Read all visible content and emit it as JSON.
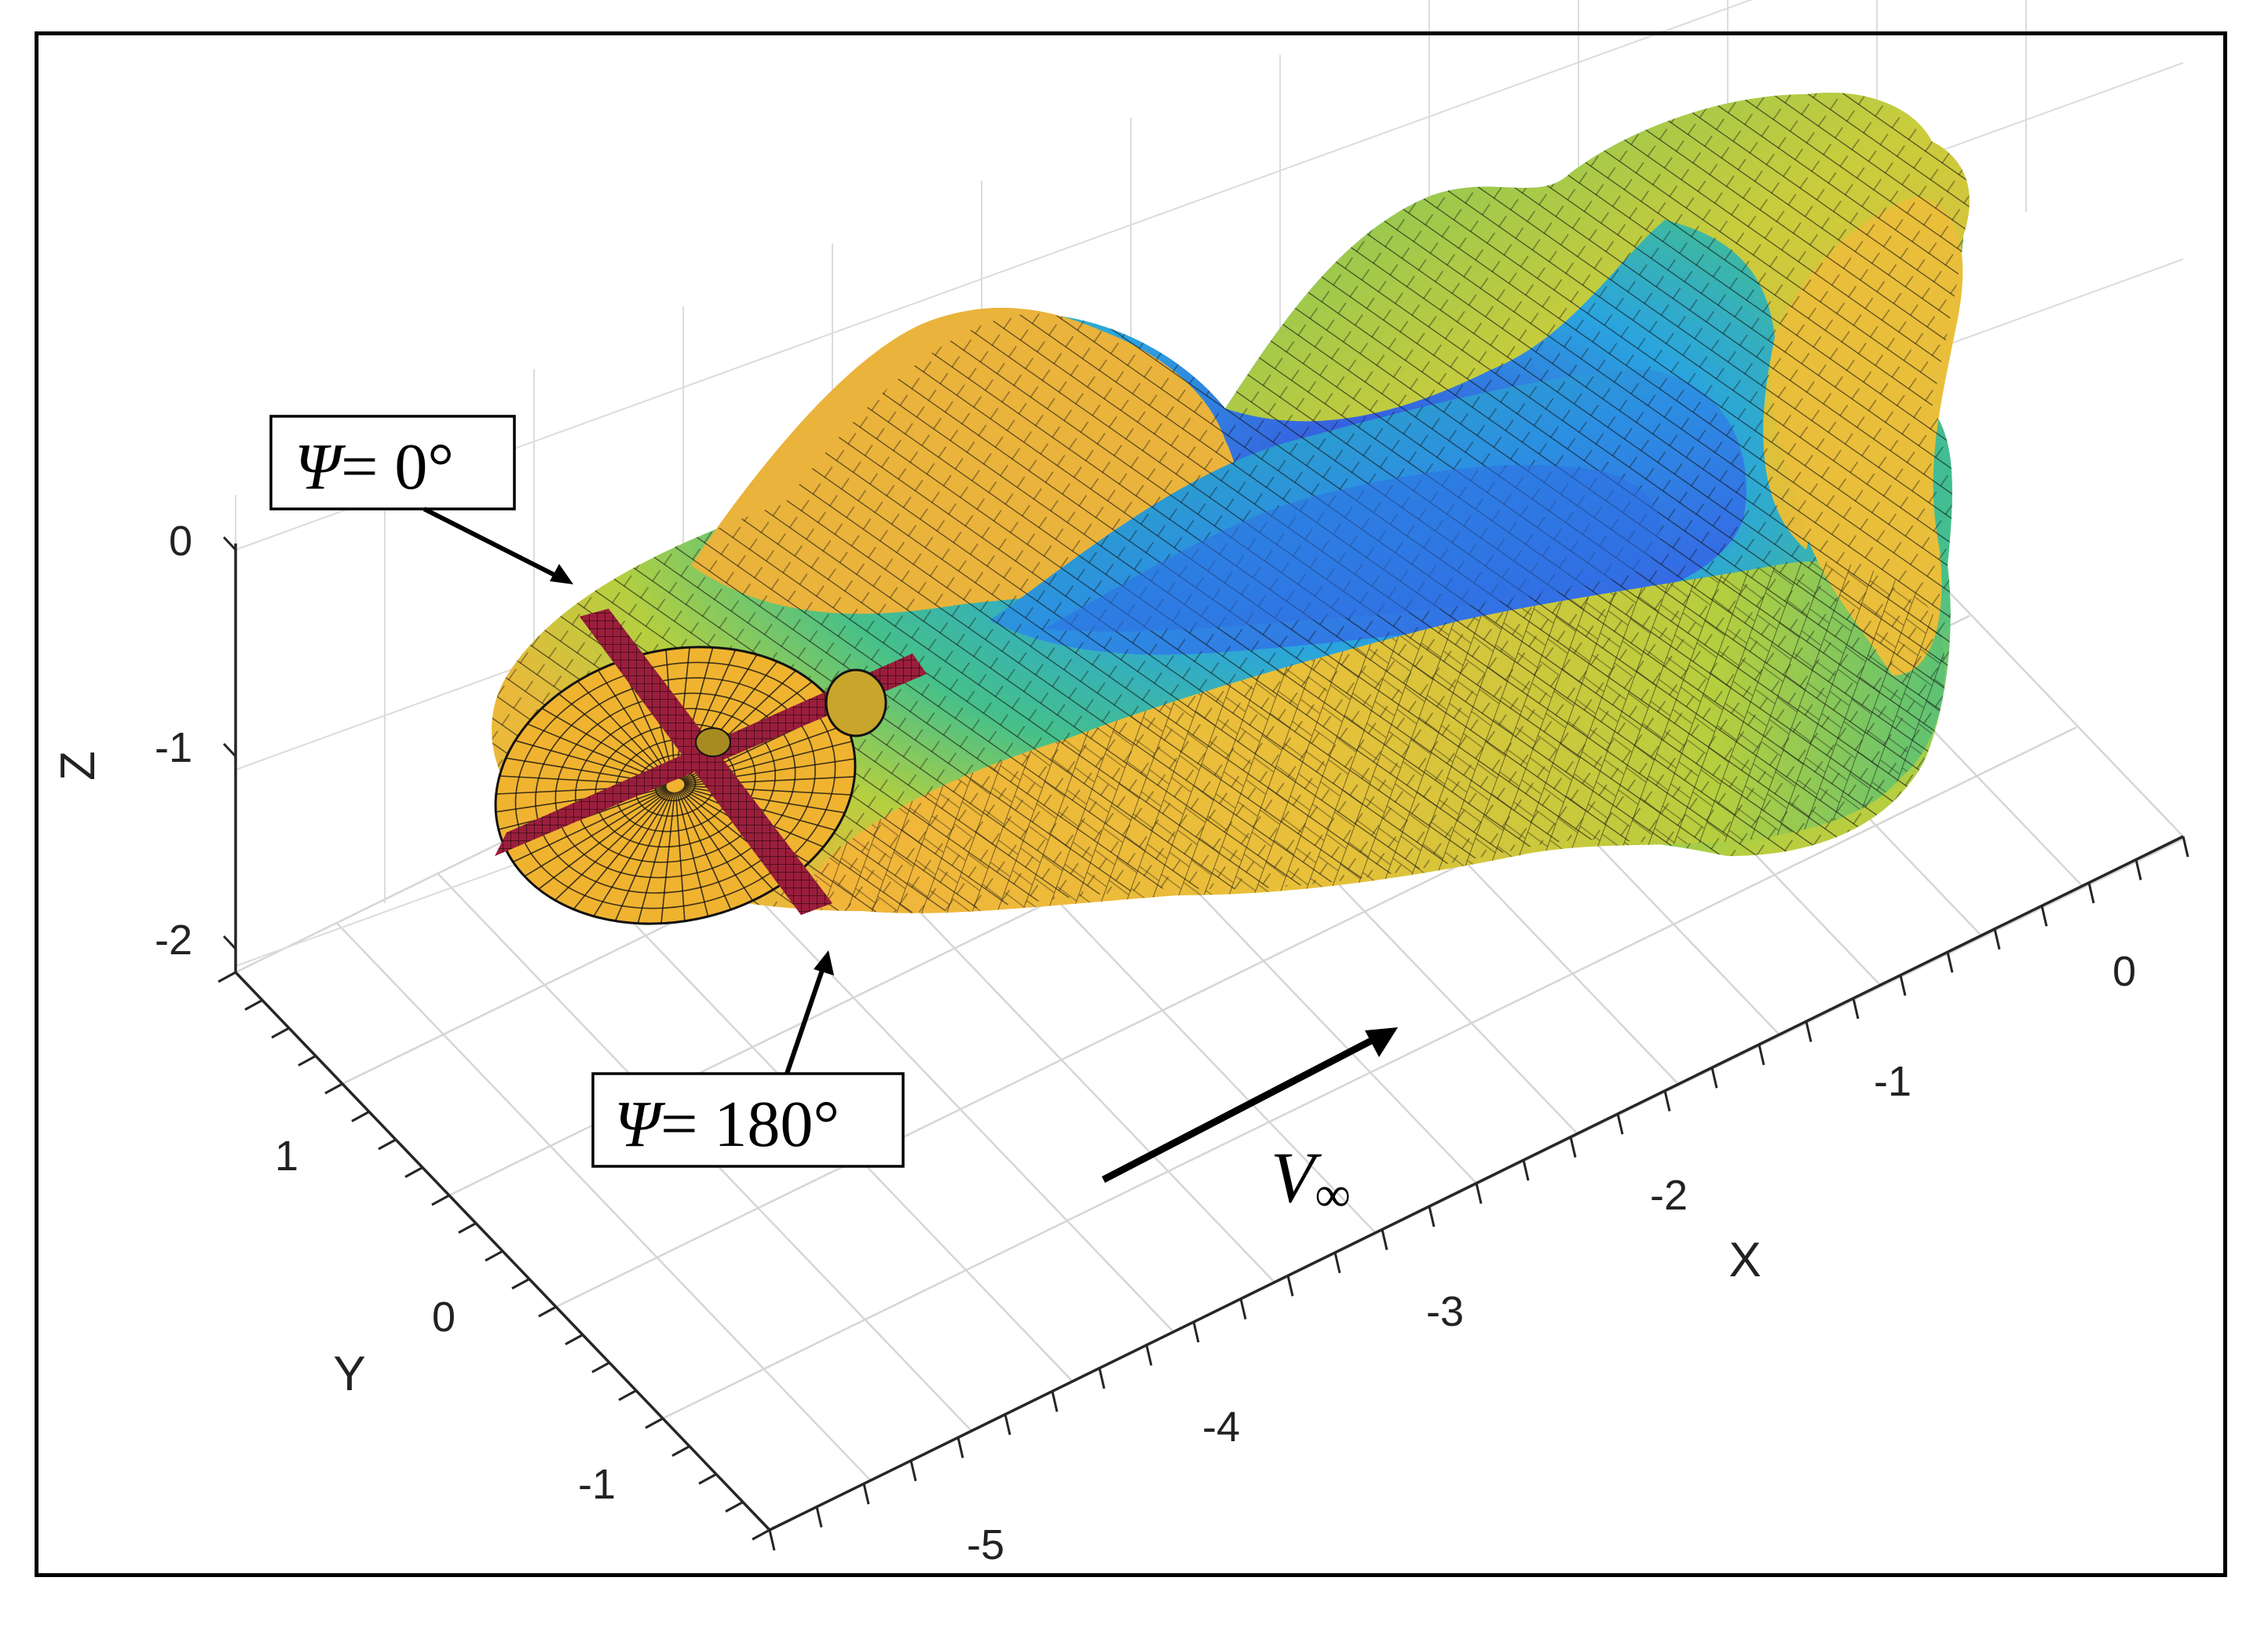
{
  "chart_data": {
    "type": "surface",
    "render": "3d-isosurface",
    "axes": {
      "x": {
        "label": "X",
        "ticks": [
          "0",
          "-1",
          "-2",
          "-3",
          "-4",
          "-5"
        ]
      },
      "y": {
        "label": "Y",
        "ticks": [
          "1",
          "0",
          "-1"
        ]
      },
      "z": {
        "label": "Z",
        "ticks": [
          "0",
          "-1",
          "-2"
        ]
      }
    },
    "grid": true,
    "annotations": {
      "psi0": {
        "symbol": "Ψ",
        "text": "= 0°"
      },
      "psi180": {
        "symbol": "Ψ",
        "text": "= 180°"
      },
      "freestream": {
        "symbol": "V",
        "subscript": "∞"
      }
    },
    "colormap": [
      "#f2b43a",
      "#e9c23a",
      "#b8cf3e",
      "#5fc46a",
      "#2fb6a8",
      "#2a8fe0",
      "#3a4ee0"
    ],
    "rotor_color": "#9a1e3c",
    "disk_color": "#f0b330"
  }
}
